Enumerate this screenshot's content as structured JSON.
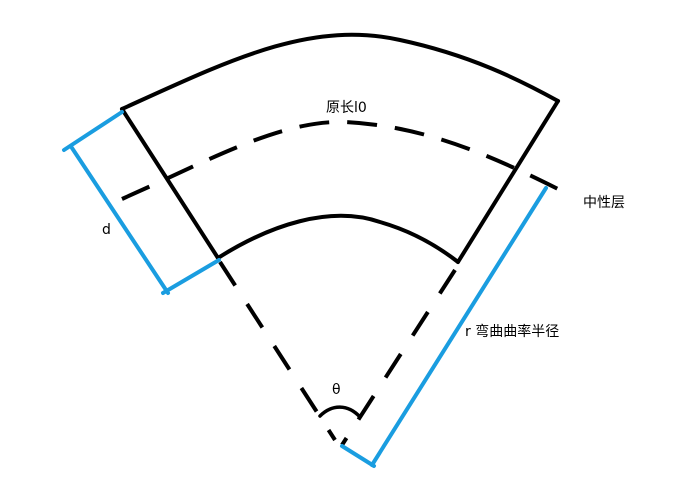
{
  "labels": {
    "original_length": "原长l0",
    "neutral_layer": "中性层",
    "thickness": "d",
    "bend_radius": "r 弯曲曲率半径",
    "angle": "θ"
  },
  "colors": {
    "outline": "#000000",
    "dimension": "#1a9de0",
    "background": "#ffffff"
  }
}
